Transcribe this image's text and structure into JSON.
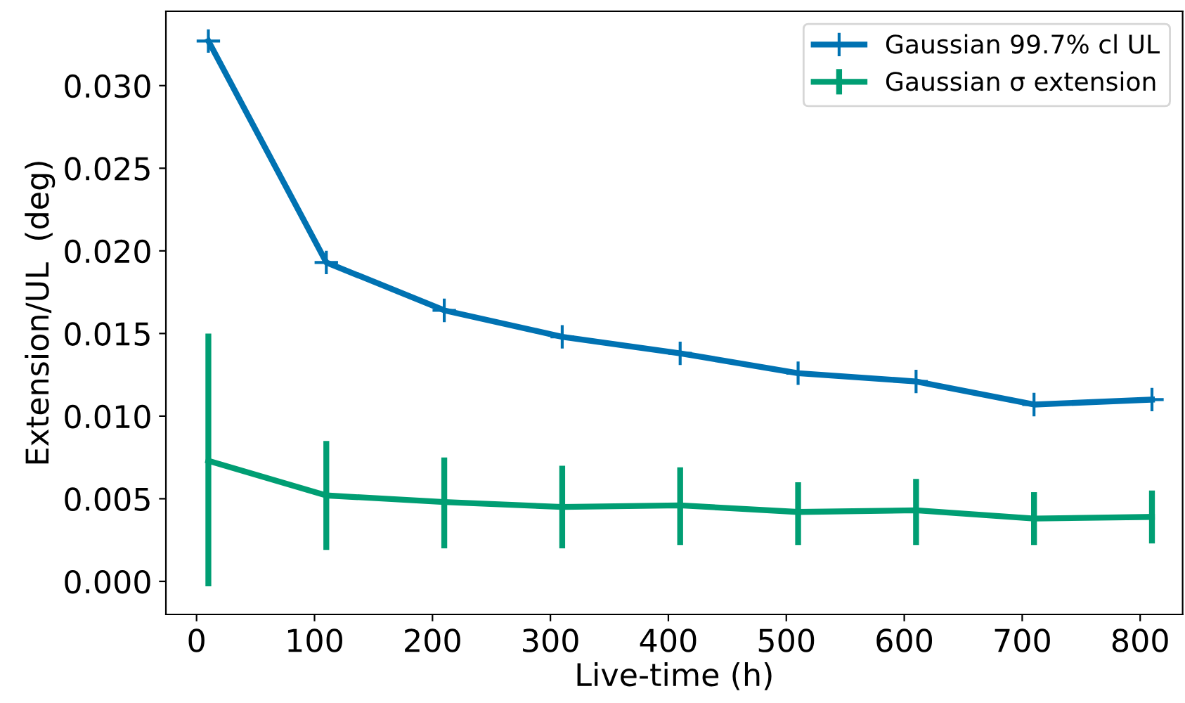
{
  "chart_data": {
    "type": "line",
    "xlabel": "Live-time (h)",
    "ylabel": "Extension/UL  (deg)",
    "x": [
      10,
      110,
      210,
      310,
      410,
      510,
      610,
      710,
      810
    ],
    "series": [
      {
        "name": "Gaussian 99.7% cl UL",
        "color": "#0072b2",
        "marker": "cross",
        "values": [
          0.0327,
          0.0193,
          0.0164,
          0.0148,
          0.0138,
          0.0126,
          0.0121,
          0.0107,
          0.011
        ]
      },
      {
        "name": "Gaussian σ extension",
        "color": "#009e73",
        "marker": "none",
        "values": [
          0.0073,
          0.0052,
          0.0048,
          0.0045,
          0.0046,
          0.0042,
          0.0043,
          0.0038,
          0.0039
        ],
        "errors": [
          [
            -0.0003,
            0.015
          ],
          [
            0.0019,
            0.0085
          ],
          [
            0.002,
            0.0075
          ],
          [
            0.002,
            0.007
          ],
          [
            0.0022,
            0.0069
          ],
          [
            0.0022,
            0.006
          ],
          [
            0.0022,
            0.0062
          ],
          [
            0.0022,
            0.0054
          ],
          [
            0.0023,
            0.0055
          ]
        ]
      }
    ],
    "xlim": [
      -26,
      836
    ],
    "xticks": [
      0,
      100,
      200,
      300,
      400,
      500,
      600,
      700,
      800
    ],
    "ylim": [
      -0.002,
      0.0345
    ],
    "yticks": [
      {
        "value": 0,
        "label": "0.000"
      },
      {
        "value": 0.005,
        "label": "0.005"
      },
      {
        "value": 0.01,
        "label": "0.010"
      },
      {
        "value": 0.015,
        "label": "0.015"
      },
      {
        "value": 0.02,
        "label": "0.020"
      },
      {
        "value": 0.025,
        "label": "0.025"
      },
      {
        "value": 0.03,
        "label": "0.030"
      }
    ],
    "grid": false,
    "legend": "top right",
    "line_style": "solid"
  }
}
